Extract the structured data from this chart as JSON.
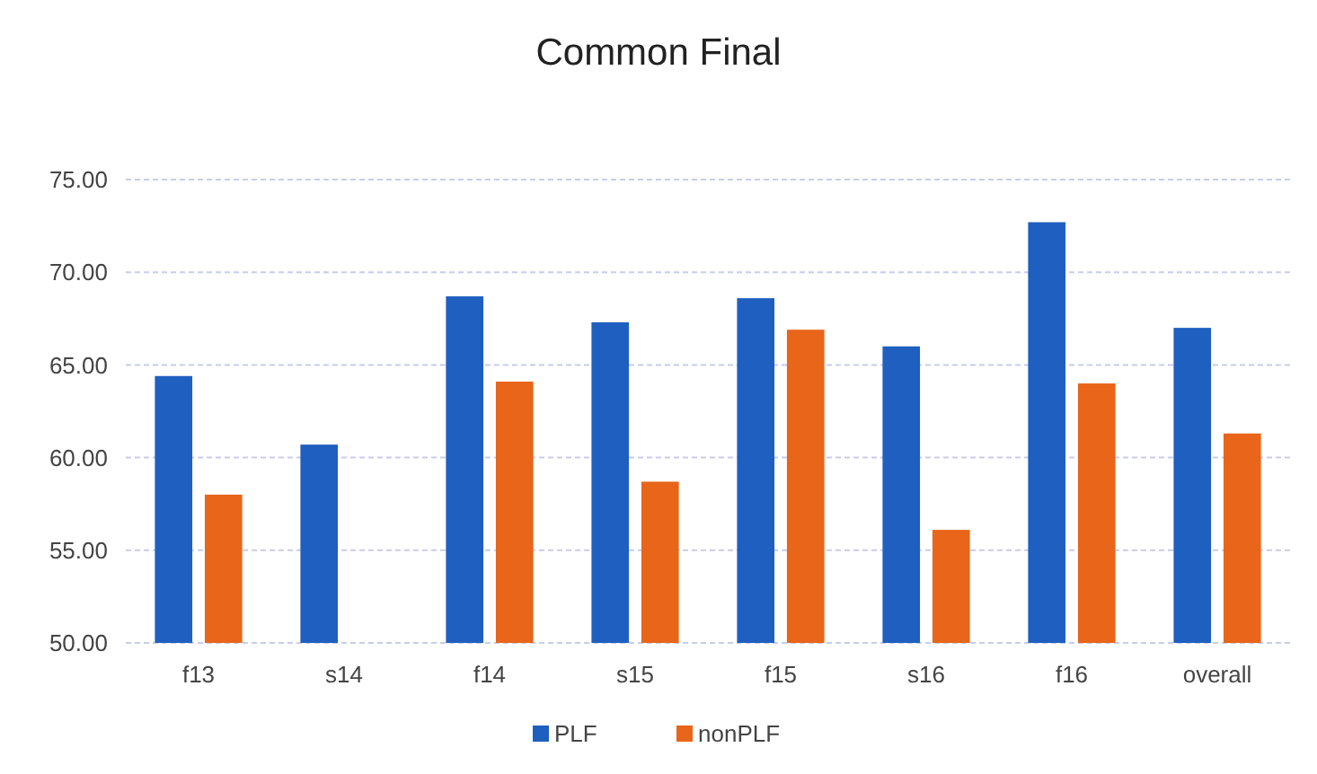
{
  "chart_data": {
    "type": "bar",
    "title": "Common Final",
    "categories": [
      "f13",
      "s14",
      "f14",
      "s15",
      "f15",
      "s16",
      "f16",
      "overall"
    ],
    "series": [
      {
        "name": "PLF",
        "color": "#1f5fc0",
        "values": [
          64.4,
          60.7,
          68.7,
          67.3,
          68.6,
          66.0,
          72.7,
          67.0
        ]
      },
      {
        "name": "nonPLF",
        "color": "#e8651a",
        "values": [
          58.0,
          null,
          64.1,
          58.7,
          66.9,
          56.1,
          64.0,
          61.3
        ]
      }
    ],
    "ylim": [
      50,
      75
    ],
    "yticks": [
      {
        "value": 50,
        "label": "50.00"
      },
      {
        "value": 55,
        "label": "55.00"
      },
      {
        "value": 60,
        "label": "60.00"
      },
      {
        "value": 65,
        "label": "65.00"
      },
      {
        "value": 70,
        "label": "70.00"
      },
      {
        "value": 75,
        "label": "75.00"
      }
    ],
    "grid": "y",
    "legend": "bottom"
  }
}
